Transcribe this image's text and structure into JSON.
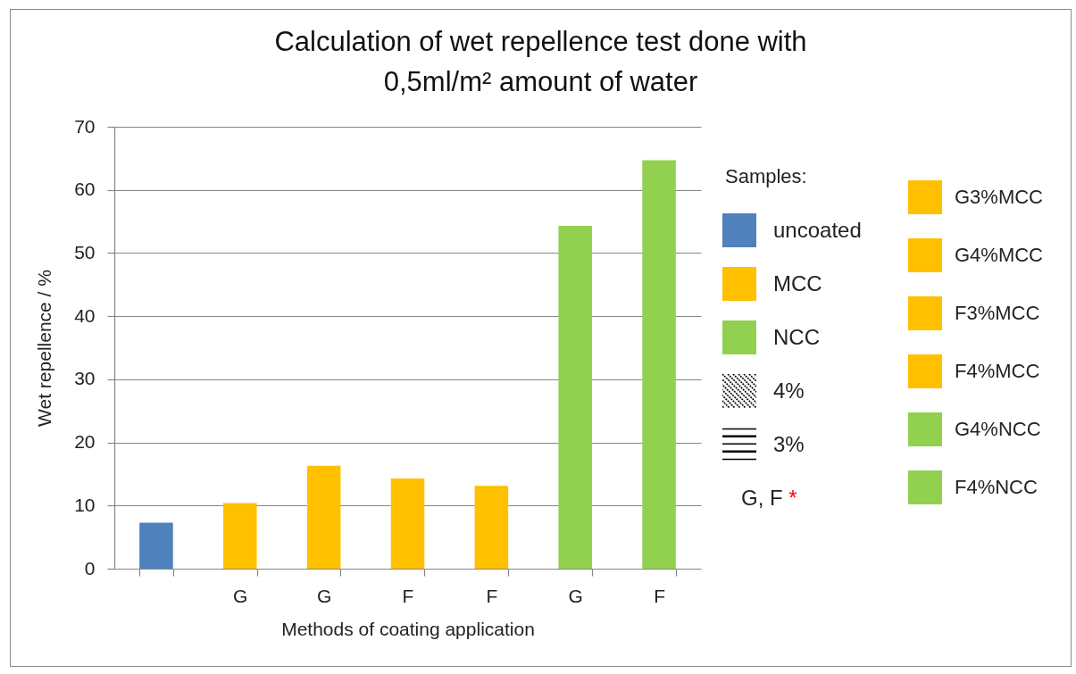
{
  "chart_data": {
    "type": "bar",
    "title": "Calculation of wet repellence test done with 0,5ml/m² amount of water",
    "xlabel": "Methods of coating application",
    "ylabel": "Wet repellence / %",
    "categories": [
      null,
      "G",
      "G",
      "F",
      "F",
      "G",
      "F"
    ],
    "series": [
      {
        "color": "#4f81bd",
        "values": [
          7.3,
          null,
          null,
          null,
          null,
          null,
          null
        ]
      },
      {
        "name": "G3%MCC",
        "color": "#ffc000",
        "values": [
          null,
          10.4,
          null,
          null,
          null,
          null,
          null
        ]
      },
      {
        "name": "G4%MCC",
        "color": "#ffc000",
        "values": [
          null,
          null,
          16.3,
          null,
          null,
          null,
          null
        ]
      },
      {
        "name": "F3%MCC",
        "color": "#ffc000",
        "values": [
          null,
          null,
          null,
          14.3,
          null,
          null,
          null
        ]
      },
      {
        "name": "F4%MCC",
        "color": "#ffc000",
        "values": [
          null,
          null,
          null,
          null,
          13.1,
          null,
          null
        ]
      },
      {
        "name": "G4%NCC",
        "color": "#92d050",
        "values": [
          null,
          null,
          null,
          null,
          null,
          54.3,
          null
        ]
      },
      {
        "name": "F4%NCC",
        "color": "#92d050",
        "values": [
          null,
          null,
          null,
          null,
          null,
          null,
          64.7
        ]
      }
    ],
    "ylim": [
      0,
      70
    ],
    "yticks": [
      0,
      10,
      20,
      30,
      40,
      50,
      60,
      70
    ],
    "grid": "y",
    "legend": "right",
    "annotations": [
      "Samples:",
      "uncoated",
      "MCC",
      "NCC",
      "4%",
      "3%",
      "G, F *"
    ]
  }
}
